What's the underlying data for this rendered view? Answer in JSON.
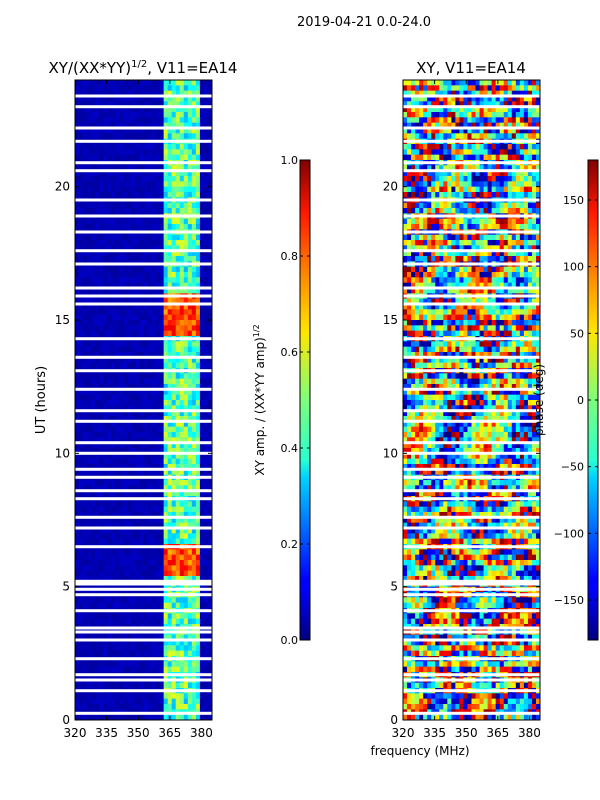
{
  "figure": {
    "suptitle": "2019-04-21 0.0-24.0",
    "xlabel_shared": "frequency (MHz)"
  },
  "chart_data": [
    {
      "type": "heatmap",
      "title": "XY/(XX*YY)",
      "title_superscript": "1/2",
      "title_suffix": ", V11=EA14",
      "xlabel": "",
      "ylabel": "UT (hours)",
      "xlim": [
        320,
        385
      ],
      "ylim": [
        0,
        24
      ],
      "xticks": [
        320,
        335,
        350,
        365,
        380
      ],
      "yticks": [
        0,
        5,
        10,
        15,
        20
      ],
      "colorbar": {
        "label": "XY amp. / (XX*YY amp)",
        "label_superscript": "1/2",
        "range": [
          0.0,
          1.0
        ],
        "ticks": [
          "0.0",
          "0.2",
          "0.4",
          "0.6",
          "0.8",
          "1.0"
        ],
        "tick_values": [
          0.0,
          0.2,
          0.4,
          0.6,
          0.8,
          1.0
        ],
        "colormap": "jet"
      },
      "description_of_values": {
        "low_freq_region_mhz": [
          320,
          362
        ],
        "low_freq_typical_value": 0.03,
        "high_freq_region_mhz": [
          362,
          380
        ],
        "high_freq_typical_value": 0.45,
        "peak_value_bands_ut_hours": [
          [
            5.5,
            6.5
          ],
          [
            14.5,
            16.0
          ]
        ],
        "peak_value": 0.8
      },
      "flagged_ut_hours": [
        0.25,
        1.1,
        1.5,
        1.7,
        2.3,
        3.0,
        3.3,
        3.45,
        4.1,
        4.7,
        4.9,
        5.1,
        5.2,
        6.5,
        7.2,
        7.6,
        8.3,
        8.6,
        9.1,
        9.4,
        10.0,
        10.4,
        11.2,
        11.6,
        12.4,
        13.1,
        13.6,
        14.3,
        15.6,
        15.9,
        16.2,
        17.1,
        17.6,
        18.3,
        18.9,
        19.5,
        20.6,
        20.9,
        21.7,
        22.2,
        23.0,
        23.4
      ]
    },
    {
      "type": "heatmap",
      "title": "XY, V11=EA14",
      "xlabel": "",
      "ylabel": "",
      "xlim": [
        320,
        385
      ],
      "ylim": [
        0,
        24
      ],
      "xticks": [
        320,
        335,
        350,
        365,
        380
      ],
      "yticks": [
        0,
        5,
        10,
        15,
        20
      ],
      "colorbar": {
        "label": "phase (deg)",
        "range": [
          -180,
          180
        ],
        "ticks": [
          "−150",
          "−100",
          "−50",
          "0",
          "50",
          "100",
          "150"
        ],
        "tick_values": [
          -150,
          -100,
          -50,
          0,
          50,
          100,
          150
        ],
        "colormap": "jet"
      },
      "description_of_values": "phase varies over the full range -180 to 180 deg with noisy horizontal streaks",
      "flagged_ut_hours": [
        0.25,
        1.1,
        1.5,
        1.7,
        2.3,
        3.0,
        3.3,
        3.45,
        4.1,
        4.7,
        4.9,
        5.1,
        5.2,
        6.5,
        7.2,
        7.6,
        8.3,
        8.6,
        9.1,
        9.4,
        10.0,
        10.4,
        11.2,
        11.6,
        12.4,
        13.1,
        13.6,
        14.3,
        15.6,
        15.9,
        16.2,
        17.1,
        17.6,
        18.3,
        18.9,
        19.5,
        20.6,
        20.9,
        21.7,
        22.2,
        23.0,
        23.4
      ]
    }
  ]
}
